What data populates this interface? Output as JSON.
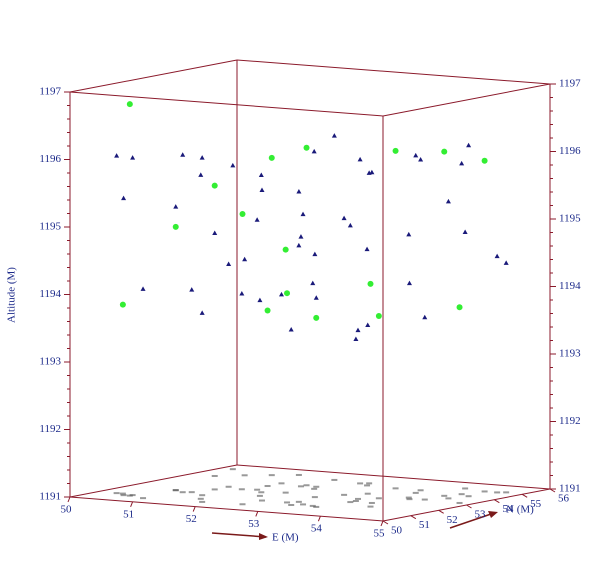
{
  "chart_data": {
    "type": "scatter3d",
    "xlabel": "E (M)",
    "ylabel": "N (M)",
    "zlabel": "Altitude (M)",
    "xlim": [
      50,
      55
    ],
    "ylim": [
      50,
      56
    ],
    "zlim": [
      1191,
      1197
    ],
    "xticks": [
      50,
      51,
      52,
      53,
      54,
      55
    ],
    "yticks": [
      50,
      51,
      52,
      53,
      54,
      55,
      56
    ],
    "zticks": [
      1191,
      1192,
      1193,
      1194,
      1195,
      1196,
      1197
    ],
    "box_color": "#8b1a2b",
    "series": [
      {
        "color": "#1a1a7a",
        "marker": "triangle",
        "x": [
          50.3,
          50.8,
          51.2,
          51.6,
          52.0,
          52.4,
          52.8,
          53.2,
          53.6,
          54.0,
          50.5,
          51.0,
          51.5,
          52.0,
          52.5,
          53.0,
          53.5,
          54.0,
          54.5,
          50.2,
          50.9,
          51.4,
          51.9,
          52.3,
          52.7,
          53.1,
          53.5,
          53.9,
          54.3,
          54.7,
          50.6,
          51.1,
          51.7,
          52.2,
          52.6,
          53.3,
          53.8,
          54.2,
          50.4,
          51.3,
          51.8,
          52.9,
          53.4,
          54.4,
          50.7,
          51.6,
          52.1,
          53.0,
          53.7,
          54.6
        ],
        "y": [
          51.0,
          52.0,
          53.0,
          54.0,
          55.0,
          51.5,
          52.5,
          53.5,
          54.5,
          55.2,
          50.8,
          51.8,
          52.8,
          53.8,
          54.8,
          51.2,
          52.2,
          53.2,
          54.2,
          55.4,
          50.6,
          51.6,
          52.6,
          53.6,
          54.6,
          51.4,
          52.4,
          53.4,
          54.4,
          55.1,
          50.9,
          51.9,
          52.9,
          53.9,
          54.9,
          51.3,
          52.3,
          53.3,
          54.3,
          55.3,
          50.7,
          51.7,
          52.7,
          53.7,
          54.7,
          51.1,
          52.1,
          53.1,
          54.1,
          55.0
        ],
        "z": [
          1196.0,
          1195.2,
          1194.3,
          1193.8,
          1196.1,
          1195.6,
          1194.6,
          1193.5,
          1195.9,
          1194.8,
          1195.4,
          1196.0,
          1193.9,
          1194.7,
          1195.8,
          1193.6,
          1195.1,
          1194.2,
          1196.2,
          1195.5,
          1194.1,
          1193.7,
          1195.7,
          1196.0,
          1194.5,
          1195.3,
          1193.4,
          1194.9,
          1195.9,
          1194.4,
          1196.0,
          1194.0,
          1195.0,
          1193.8,
          1195.6,
          1194.3,
          1195.9,
          1193.7,
          1194.6,
          1195.2,
          1196.1,
          1194.8,
          1193.5,
          1195.4,
          1194.2,
          1195.8,
          1193.9,
          1195.1,
          1196.0,
          1194.5
        ]
      },
      {
        "color": "#33ee33",
        "marker": "circle",
        "x": [
          50.4,
          51.2,
          52.0,
          52.8,
          53.6,
          54.4,
          50.8,
          51.6,
          52.4,
          53.2,
          54.0,
          54.8,
          51.0,
          52.2,
          53.4,
          54.2,
          50.6
        ],
        "y": [
          51.0,
          52.5,
          54.0,
          51.5,
          53.0,
          55.0,
          52.0,
          53.5,
          50.8,
          54.5,
          51.8,
          53.2,
          55.0,
          52.8,
          51.2,
          54.0,
          50.8
        ],
        "z": [
          1193.8,
          1195.5,
          1196.0,
          1194.1,
          1193.7,
          1195.9,
          1194.9,
          1193.6,
          1195.3,
          1196.0,
          1194.3,
          1193.9,
          1195.7,
          1194.6,
          1193.8,
          1196.1,
          1196.8
        ]
      }
    ]
  }
}
